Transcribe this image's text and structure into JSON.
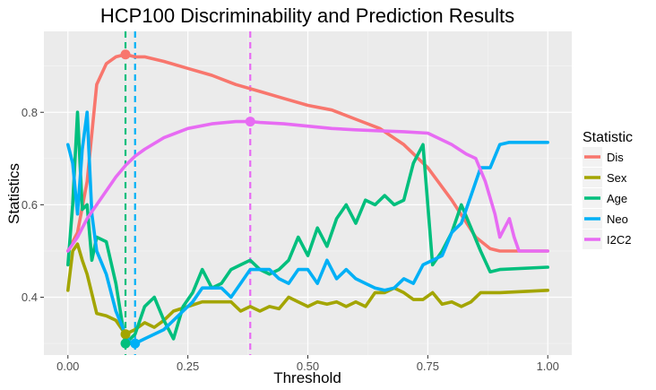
{
  "chart_data": {
    "type": "line",
    "title": "HCP100 Discriminability and Prediction Results",
    "xlabel": "Threshold",
    "ylabel": "Statistics",
    "xlim": [
      -0.05,
      1.05
    ],
    "ylim": [
      0.275,
      0.975
    ],
    "x_ticks": [
      0.0,
      0.25,
      0.5,
      0.75,
      1.0
    ],
    "x_tick_labels": [
      "0.00",
      "0.25",
      "0.50",
      "0.75",
      "1.00"
    ],
    "y_ticks": [
      0.4,
      0.6,
      0.8
    ],
    "y_tick_labels": [
      "0.4",
      "0.6",
      "0.8"
    ],
    "grid": true,
    "legend": {
      "title": "Statistic",
      "position": "right"
    },
    "series": [
      {
        "name": "Dis",
        "color": "#F8766D",
        "points": [
          [
            0.0,
            0.5
          ],
          [
            0.02,
            0.54
          ],
          [
            0.04,
            0.65
          ],
          [
            0.06,
            0.86
          ],
          [
            0.08,
            0.905
          ],
          [
            0.1,
            0.92
          ],
          [
            0.12,
            0.925
          ],
          [
            0.14,
            0.92
          ],
          [
            0.16,
            0.92
          ],
          [
            0.2,
            0.91
          ],
          [
            0.25,
            0.895
          ],
          [
            0.3,
            0.88
          ],
          [
            0.35,
            0.86
          ],
          [
            0.4,
            0.845
          ],
          [
            0.45,
            0.83
          ],
          [
            0.5,
            0.815
          ],
          [
            0.55,
            0.805
          ],
          [
            0.6,
            0.785
          ],
          [
            0.65,
            0.765
          ],
          [
            0.7,
            0.73
          ],
          [
            0.75,
            0.68
          ],
          [
            0.8,
            0.61
          ],
          [
            0.85,
            0.53
          ],
          [
            0.88,
            0.505
          ],
          [
            0.9,
            0.5
          ],
          [
            1.0,
            0.5
          ]
        ]
      },
      {
        "name": "Sex",
        "color": "#A3A500",
        "points": [
          [
            0.0,
            0.415
          ],
          [
            0.01,
            0.5
          ],
          [
            0.02,
            0.515
          ],
          [
            0.03,
            0.48
          ],
          [
            0.04,
            0.45
          ],
          [
            0.06,
            0.365
          ],
          [
            0.08,
            0.36
          ],
          [
            0.1,
            0.35
          ],
          [
            0.12,
            0.32
          ],
          [
            0.14,
            0.33
          ],
          [
            0.16,
            0.345
          ],
          [
            0.18,
            0.335
          ],
          [
            0.2,
            0.35
          ],
          [
            0.22,
            0.37
          ],
          [
            0.25,
            0.38
          ],
          [
            0.28,
            0.39
          ],
          [
            0.3,
            0.39
          ],
          [
            0.34,
            0.39
          ],
          [
            0.36,
            0.37
          ],
          [
            0.38,
            0.38
          ],
          [
            0.4,
            0.37
          ],
          [
            0.42,
            0.38
          ],
          [
            0.44,
            0.375
          ],
          [
            0.46,
            0.4
          ],
          [
            0.48,
            0.39
          ],
          [
            0.5,
            0.38
          ],
          [
            0.52,
            0.39
          ],
          [
            0.54,
            0.385
          ],
          [
            0.56,
            0.39
          ],
          [
            0.58,
            0.38
          ],
          [
            0.6,
            0.39
          ],
          [
            0.62,
            0.38
          ],
          [
            0.64,
            0.41
          ],
          [
            0.66,
            0.41
          ],
          [
            0.68,
            0.42
          ],
          [
            0.7,
            0.41
          ],
          [
            0.72,
            0.395
          ],
          [
            0.74,
            0.395
          ],
          [
            0.76,
            0.41
          ],
          [
            0.78,
            0.385
          ],
          [
            0.8,
            0.39
          ],
          [
            0.82,
            0.38
          ],
          [
            0.84,
            0.39
          ],
          [
            0.86,
            0.41
          ],
          [
            0.88,
            0.41
          ],
          [
            0.9,
            0.41
          ],
          [
            1.0,
            0.415
          ]
        ]
      },
      {
        "name": "Age",
        "color": "#00BF7D",
        "points": [
          [
            0.0,
            0.47
          ],
          [
            0.01,
            0.6
          ],
          [
            0.02,
            0.8
          ],
          [
            0.03,
            0.59
          ],
          [
            0.04,
            0.6
          ],
          [
            0.05,
            0.48
          ],
          [
            0.06,
            0.53
          ],
          [
            0.08,
            0.52
          ],
          [
            0.1,
            0.43
          ],
          [
            0.12,
            0.3
          ],
          [
            0.14,
            0.32
          ],
          [
            0.16,
            0.38
          ],
          [
            0.18,
            0.4
          ],
          [
            0.2,
            0.35
          ],
          [
            0.22,
            0.31
          ],
          [
            0.24,
            0.38
          ],
          [
            0.26,
            0.41
          ],
          [
            0.28,
            0.46
          ],
          [
            0.3,
            0.42
          ],
          [
            0.32,
            0.43
          ],
          [
            0.34,
            0.46
          ],
          [
            0.36,
            0.47
          ],
          [
            0.38,
            0.48
          ],
          [
            0.4,
            0.46
          ],
          [
            0.42,
            0.45
          ],
          [
            0.44,
            0.46
          ],
          [
            0.46,
            0.48
          ],
          [
            0.48,
            0.53
          ],
          [
            0.5,
            0.49
          ],
          [
            0.52,
            0.55
          ],
          [
            0.54,
            0.51
          ],
          [
            0.56,
            0.57
          ],
          [
            0.58,
            0.6
          ],
          [
            0.6,
            0.56
          ],
          [
            0.62,
            0.61
          ],
          [
            0.64,
            0.6
          ],
          [
            0.66,
            0.62
          ],
          [
            0.68,
            0.6
          ],
          [
            0.7,
            0.61
          ],
          [
            0.72,
            0.69
          ],
          [
            0.74,
            0.73
          ],
          [
            0.76,
            0.47
          ],
          [
            0.78,
            0.5
          ],
          [
            0.8,
            0.54
          ],
          [
            0.82,
            0.6
          ],
          [
            0.84,
            0.55
          ],
          [
            0.86,
            0.5
          ],
          [
            0.88,
            0.455
          ],
          [
            0.9,
            0.46
          ],
          [
            1.0,
            0.465
          ]
        ]
      },
      {
        "name": "Neo",
        "color": "#00B0F6",
        "points": [
          [
            0.0,
            0.73
          ],
          [
            0.01,
            0.69
          ],
          [
            0.02,
            0.58
          ],
          [
            0.03,
            0.72
          ],
          [
            0.04,
            0.8
          ],
          [
            0.05,
            0.58
          ],
          [
            0.06,
            0.5
          ],
          [
            0.08,
            0.45
          ],
          [
            0.1,
            0.37
          ],
          [
            0.12,
            0.32
          ],
          [
            0.13,
            0.3
          ],
          [
            0.14,
            0.3
          ],
          [
            0.16,
            0.31
          ],
          [
            0.18,
            0.32
          ],
          [
            0.2,
            0.33
          ],
          [
            0.22,
            0.35
          ],
          [
            0.24,
            0.37
          ],
          [
            0.26,
            0.39
          ],
          [
            0.28,
            0.42
          ],
          [
            0.3,
            0.42
          ],
          [
            0.32,
            0.42
          ],
          [
            0.34,
            0.4
          ],
          [
            0.36,
            0.43
          ],
          [
            0.38,
            0.46
          ],
          [
            0.4,
            0.46
          ],
          [
            0.42,
            0.46
          ],
          [
            0.44,
            0.44
          ],
          [
            0.46,
            0.43
          ],
          [
            0.48,
            0.46
          ],
          [
            0.5,
            0.46
          ],
          [
            0.52,
            0.43
          ],
          [
            0.54,
            0.48
          ],
          [
            0.56,
            0.44
          ],
          [
            0.58,
            0.46
          ],
          [
            0.6,
            0.44
          ],
          [
            0.62,
            0.43
          ],
          [
            0.64,
            0.42
          ],
          [
            0.66,
            0.415
          ],
          [
            0.68,
            0.42
          ],
          [
            0.7,
            0.44
          ],
          [
            0.72,
            0.43
          ],
          [
            0.74,
            0.47
          ],
          [
            0.76,
            0.48
          ],
          [
            0.78,
            0.49
          ],
          [
            0.8,
            0.54
          ],
          [
            0.82,
            0.56
          ],
          [
            0.84,
            0.62
          ],
          [
            0.86,
            0.68
          ],
          [
            0.88,
            0.68
          ],
          [
            0.9,
            0.73
          ],
          [
            0.92,
            0.735
          ],
          [
            1.0,
            0.735
          ]
        ]
      },
      {
        "name": "I2C2",
        "color": "#E76BF3",
        "points": [
          [
            0.0,
            0.5
          ],
          [
            0.02,
            0.53
          ],
          [
            0.04,
            0.57
          ],
          [
            0.06,
            0.6
          ],
          [
            0.08,
            0.63
          ],
          [
            0.1,
            0.66
          ],
          [
            0.12,
            0.685
          ],
          [
            0.14,
            0.705
          ],
          [
            0.16,
            0.72
          ],
          [
            0.2,
            0.745
          ],
          [
            0.25,
            0.765
          ],
          [
            0.3,
            0.775
          ],
          [
            0.35,
            0.78
          ],
          [
            0.38,
            0.78
          ],
          [
            0.4,
            0.778
          ],
          [
            0.45,
            0.775
          ],
          [
            0.5,
            0.77
          ],
          [
            0.55,
            0.765
          ],
          [
            0.6,
            0.762
          ],
          [
            0.65,
            0.76
          ],
          [
            0.7,
            0.758
          ],
          [
            0.75,
            0.755
          ],
          [
            0.8,
            0.73
          ],
          [
            0.83,
            0.71
          ],
          [
            0.85,
            0.7
          ],
          [
            0.87,
            0.65
          ],
          [
            0.89,
            0.58
          ],
          [
            0.9,
            0.53
          ],
          [
            0.92,
            0.57
          ],
          [
            0.93,
            0.53
          ],
          [
            0.94,
            0.5
          ],
          [
            1.0,
            0.5
          ]
        ]
      }
    ],
    "vlines": [
      {
        "x": 0.12,
        "color": "#00BF7D"
      },
      {
        "x": 0.14,
        "color": "#00B0F6"
      },
      {
        "x": 0.38,
        "color": "#E76BF3"
      }
    ],
    "markers": [
      {
        "x": 0.12,
        "y": 0.925,
        "color": "#F8766D"
      },
      {
        "x": 0.12,
        "y": 0.32,
        "color": "#A3A500"
      },
      {
        "x": 0.12,
        "y": 0.3,
        "color": "#00BF7D"
      },
      {
        "x": 0.14,
        "y": 0.3,
        "color": "#00B0F6"
      },
      {
        "x": 0.38,
        "y": 0.78,
        "color": "#E76BF3"
      }
    ]
  }
}
